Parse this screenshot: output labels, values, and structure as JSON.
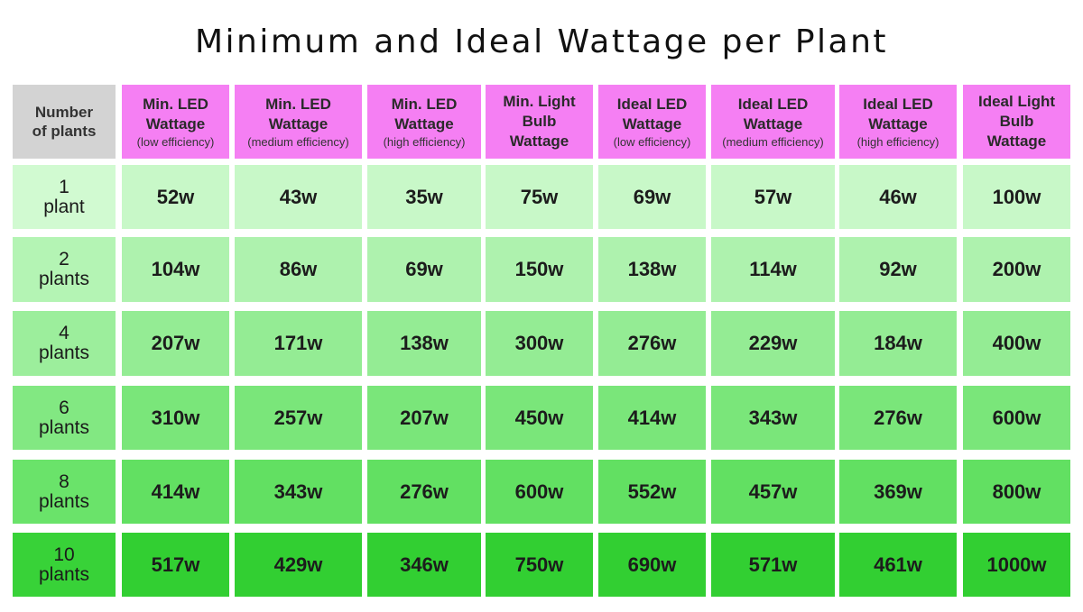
{
  "title": "Minimum and Ideal Wattage per Plant",
  "chart_data": {
    "type": "table",
    "title": "Minimum and Ideal Wattage per Plant",
    "corner_label": [
      "Number",
      "of plants"
    ],
    "columns": [
      {
        "lines": [
          "Min. LED",
          "Wattage"
        ],
        "sub": "(low efficiency)"
      },
      {
        "lines": [
          "Min. LED",
          "Wattage"
        ],
        "sub": "(medium efficiency)"
      },
      {
        "lines": [
          "Min. LED",
          "Wattage"
        ],
        "sub": "(high efficiency)"
      },
      {
        "lines": [
          "Min. Light",
          "Bulb",
          "Wattage"
        ],
        "sub": ""
      },
      {
        "lines": [
          "Ideal LED",
          "Wattage"
        ],
        "sub": "(low efficiency)"
      },
      {
        "lines": [
          "Ideal LED",
          "Wattage"
        ],
        "sub": "(medium efficiency)"
      },
      {
        "lines": [
          "Ideal LED",
          "Wattage"
        ],
        "sub": "(high efficiency)"
      },
      {
        "lines": [
          "Ideal Light",
          "Bulb",
          "Wattage"
        ],
        "sub": ""
      }
    ],
    "rows": [
      {
        "label": [
          "1",
          "plant"
        ],
        "values": [
          "52w",
          "43w",
          "35w",
          "75w",
          "69w",
          "57w",
          "46w",
          "100w"
        ],
        "label_color": "#d1fad1",
        "value_color": "#c8f8c8"
      },
      {
        "label": [
          "2",
          "plants"
        ],
        "values": [
          "104w",
          "86w",
          "69w",
          "150w",
          "138w",
          "114w",
          "92w",
          "200w"
        ],
        "label_color": "#b4f4b4",
        "value_color": "#aef2ae"
      },
      {
        "label": [
          "4",
          "plants"
        ],
        "values": [
          "207w",
          "171w",
          "138w",
          "300w",
          "276w",
          "229w",
          "184w",
          "400w"
        ],
        "label_color": "#9cee9c",
        "value_color": "#94ec94"
      },
      {
        "label": [
          "6",
          "plants"
        ],
        "values": [
          "310w",
          "257w",
          "207w",
          "450w",
          "414w",
          "343w",
          "276w",
          "600w"
        ],
        "label_color": "#82e882",
        "value_color": "#7ae67a"
      },
      {
        "label": [
          "8",
          "plants"
        ],
        "values": [
          "414w",
          "343w",
          "276w",
          "600w",
          "552w",
          "457w",
          "369w",
          "800w"
        ],
        "label_color": "#6ae36a",
        "value_color": "#62e062"
      },
      {
        "label": [
          "10",
          "plants"
        ],
        "values": [
          "517w",
          "429w",
          "346w",
          "750w",
          "690w",
          "571w",
          "461w",
          "1000w"
        ],
        "label_color": "#38d238",
        "value_color": "#32cf32"
      }
    ]
  }
}
